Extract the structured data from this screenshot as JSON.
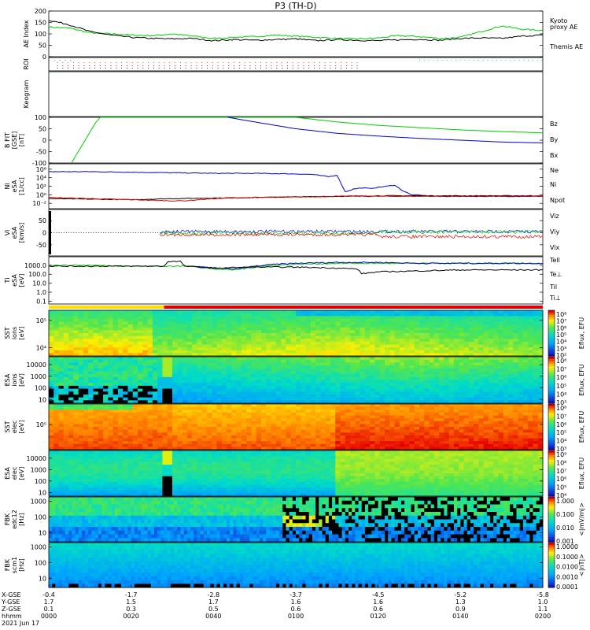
{
  "title": "P3 (TH-D)",
  "colors": {
    "green": "#00cc00",
    "red": "#dd0000",
    "blue": "#0000cc",
    "black": "#000000",
    "cyan": "#00cccc",
    "yellow": "#ffdd00"
  },
  "time_axis": {
    "row_labels": [
      "X-GSE",
      "Y-GSE",
      "Z-GSE",
      "hhmm",
      "2021 Jun 17"
    ],
    "ticks": [
      {
        "x": "-0.4",
        "y": "1.7",
        "z": "0.1",
        "t": "0000"
      },
      {
        "x": "-1.7",
        "y": "1.5",
        "z": "0.3",
        "t": "0020"
      },
      {
        "x": "-2.8",
        "y": "1.7",
        "z": "0.5",
        "t": "0040"
      },
      {
        "x": "-3.7",
        "y": "1.6",
        "z": "0.6",
        "t": "0100"
      },
      {
        "x": "-4.5",
        "y": "1.6",
        "z": "0.6",
        "t": "0120"
      },
      {
        "x": "-5.2",
        "y": "1.3",
        "z": "0.9",
        "t": "0140"
      },
      {
        "x": "-5.8",
        "y": "1.0",
        "z": "1.1",
        "t": "0200"
      }
    ]
  },
  "chart_data": [
    {
      "id": "ae",
      "type": "line",
      "ylabel": [
        "AE Index"
      ],
      "ylim": [
        0,
        200
      ],
      "yticks": [
        "0",
        "50",
        "100",
        "150",
        "200"
      ],
      "legend": [
        {
          "text": "Kyoto",
          "color": "#00cc00"
        },
        {
          "text": "proxy AE",
          "color": "#00cc00"
        },
        {
          "text": "Themis AE",
          "color": "#000000"
        }
      ],
      "series": [
        {
          "name": "Kyoto proxy AE",
          "color": "#00cc00",
          "x": [
            0,
            5,
            10,
            15,
            20,
            25,
            30,
            35,
            40,
            45,
            50,
            55,
            60,
            65,
            70,
            75,
            80,
            85,
            90,
            95,
            100,
            105,
            110,
            115,
            120
          ],
          "y": [
            130,
            125,
            105,
            100,
            95,
            92,
            100,
            90,
            80,
            85,
            88,
            95,
            90,
            85,
            80,
            78,
            82,
            92,
            88,
            80,
            85,
            110,
            135,
            120,
            115
          ]
        },
        {
          "name": "Themis AE",
          "color": "#000000",
          "x": [
            0,
            5,
            10,
            15,
            20,
            25,
            30,
            35,
            40,
            45,
            50,
            55,
            60,
            65,
            70,
            75,
            80,
            85,
            90,
            95,
            100,
            105,
            110,
            115,
            120
          ],
          "y": [
            160,
            140,
            110,
            95,
            85,
            80,
            78,
            80,
            70,
            75,
            72,
            75,
            78,
            70,
            75,
            72,
            70,
            74,
            76,
            72,
            80,
            82,
            80,
            90,
            95
          ]
        }
      ]
    },
    {
      "id": "roi",
      "type": "scatter",
      "ylabel": [
        "ROI"
      ]
    },
    {
      "id": "keogram",
      "type": "heatmap",
      "ylabel": [
        "Keogram"
      ]
    },
    {
      "id": "bfit",
      "type": "line",
      "ylabel": [
        "B FIT",
        "[GSE]",
        "[nT]"
      ],
      "ylim": [
        -100,
        100
      ],
      "yticks": [
        "-100",
        "-50",
        "0",
        "50",
        "100"
      ],
      "legend": [
        {
          "text": "Bz",
          "color": "#dd0000"
        },
        {
          "text": "By",
          "color": "#00cc00"
        },
        {
          "text": "Bx",
          "color": "#0000cc"
        }
      ],
      "series": [
        {
          "name": "By",
          "color": "#00cc00",
          "x": [
            5.5,
            6.5,
            7.5,
            8.5,
            9.5,
            10.5,
            11.5,
            12.5,
            60,
            70,
            80,
            90,
            100,
            110,
            120
          ],
          "y": [
            -100,
            -70,
            -40,
            -10,
            20,
            50,
            80,
            100,
            100,
            80,
            65,
            55,
            45,
            38,
            32
          ]
        },
        {
          "name": "Bx",
          "color": "#0000cc",
          "x": [
            43.5,
            50,
            55,
            60,
            70,
            80,
            90,
            100,
            110,
            120
          ],
          "y": [
            100,
            80,
            65,
            50,
            30,
            18,
            8,
            0,
            -8,
            -12
          ]
        }
      ]
    },
    {
      "id": "ni",
      "type": "line",
      "ylabel": [
        "Ni",
        "eSA",
        "[1/cc]"
      ],
      "yscale": "log",
      "ylim": [
        -2,
        6
      ],
      "yticks": [
        "10⁻²",
        "10⁰",
        "10²",
        "10⁴",
        "10⁶"
      ],
      "legend": [
        {
          "text": "Ne",
          "color": "#dd0000"
        },
        {
          "text": "Ni",
          "color": "#000000"
        },
        {
          "text": "Npot",
          "color": "#0000cc"
        }
      ],
      "series": [
        {
          "name": "Npot",
          "color": "#0000cc",
          "x": [
            0,
            10,
            20,
            30,
            40,
            50,
            60,
            64,
            68,
            70,
            72,
            74,
            76,
            78,
            80,
            84,
            86,
            88,
            90,
            92,
            96,
            100,
            110,
            120
          ],
          "y": [
            4.6,
            4.6,
            4.5,
            4.4,
            4.3,
            4.3,
            4.2,
            4.1,
            3.7,
            4.0,
            1.0,
            1.5,
            1.7,
            1.6,
            1.8,
            2.2,
            1.2,
            0.5,
            0.4,
            0.3,
            0.2,
            0.2,
            0.2,
            0.2
          ]
        },
        {
          "name": "Ni",
          "color": "#000000",
          "x": [
            0,
            10,
            20,
            30,
            40,
            50,
            60,
            70,
            80,
            90,
            100,
            110,
            120
          ],
          "y": [
            -0.2,
            -0.3,
            -0.4,
            -0.2,
            -0.1,
            0.0,
            0.1,
            0.2,
            0.3,
            0.3,
            0.3,
            0.3,
            0.3
          ]
        },
        {
          "name": "Ne",
          "color": "#dd0000",
          "x": [
            0,
            10,
            20,
            30,
            33,
            40,
            50,
            60,
            70,
            80,
            90,
            100,
            110,
            120
          ],
          "y": [
            0.0,
            -0.2,
            -0.4,
            -0.6,
            -0.6,
            -0.2,
            0.0,
            0.1,
            0.2,
            0.2,
            0.2,
            0.2,
            0.2,
            0.2
          ]
        }
      ]
    },
    {
      "id": "vi",
      "type": "line",
      "ylabel": [
        "Vi",
        "eSA",
        "[km/s]"
      ],
      "ylim": [
        -100,
        100
      ],
      "yticks": [
        "-50",
        "0",
        "50"
      ],
      "legend": [
        {
          "text": "Viz",
          "color": "#dd0000"
        },
        {
          "text": "Viy",
          "color": "#00cc00"
        },
        {
          "text": "Vix",
          "color": "#0000cc"
        }
      ],
      "series": []
    },
    {
      "id": "ti",
      "type": "line",
      "ylabel": [
        "Ti",
        "eSA",
        "[eV]"
      ],
      "yscale": "log",
      "ylim": [
        -1,
        4
      ],
      "yticks": [
        "0.1",
        "1.0",
        "10.0",
        "100.0",
        "1000.0"
      ],
      "legend": [
        {
          "text": "Tell",
          "color": "#000000"
        },
        {
          "text": "Te⊥",
          "color": "#dd0000"
        },
        {
          "text": "Til",
          "color": "#00cc00"
        },
        {
          "text": "Ti⊥",
          "color": "#0000cc"
        }
      ],
      "series": [
        {
          "name": "Til",
          "color": "#00cc00",
          "x": [
            0,
            10,
            20,
            30,
            35,
            40,
            45,
            50,
            55,
            60,
            70,
            80,
            90,
            100,
            110,
            120
          ],
          "y": [
            3.1,
            3.1,
            3.0,
            3.0,
            3.0,
            2.7,
            2.6,
            2.9,
            3.1,
            3.2,
            3.3,
            3.3,
            3.3,
            3.3,
            3.3,
            3.3
          ]
        },
        {
          "name": "Ti⊥",
          "color": "#0000cc",
          "x": [
            35,
            40,
            45,
            50,
            55,
            60,
            70,
            80,
            90,
            100,
            110,
            120
          ],
          "y": [
            3.0,
            2.8,
            2.7,
            3.0,
            3.2,
            3.3,
            3.4,
            3.4,
            3.3,
            3.3,
            3.3,
            3.3
          ]
        },
        {
          "name": "Tell",
          "color": "#000000",
          "x": [
            0,
            10,
            20,
            28,
            29,
            32,
            33,
            40,
            50,
            60,
            70,
            75,
            76,
            80,
            90,
            100,
            110,
            120
          ],
          "y": [
            3.0,
            3.0,
            3.0,
            3.0,
            3.5,
            3.5,
            3.0,
            2.8,
            2.9,
            2.9,
            2.8,
            2.7,
            2.2,
            2.4,
            2.5,
            2.6,
            2.6,
            2.6
          ]
        }
      ]
    },
    {
      "id": "sst_i",
      "type": "heatmap",
      "ylabel": [
        "SST",
        "ions",
        "[eV]"
      ],
      "yticks": [
        "10⁴",
        "10⁵"
      ],
      "cbar_label": "Eflux, EFU",
      "cbar_ticks": [
        "10⁸",
        "10⁷",
        "10⁶",
        "10⁵",
        "10⁴",
        "10³",
        "10²"
      ]
    },
    {
      "id": "esa_i",
      "type": "heatmap",
      "ylabel": [
        "ESA",
        "ions",
        "[eV]"
      ],
      "yticks": [
        "10",
        "100",
        "1000",
        "10000"
      ],
      "cbar_label": "Eflux, EFU",
      "cbar_ticks": [
        "10⁸",
        "10⁷",
        "10⁶",
        "10⁵",
        "10⁴",
        "10³"
      ]
    },
    {
      "id": "sst_e",
      "type": "heatmap",
      "ylabel": [
        "SST",
        "elec",
        "[eV]"
      ],
      "yticks": [
        "10⁵"
      ],
      "cbar_label": "Eflux, EFU",
      "cbar_ticks": [
        "10⁸",
        "10⁷",
        "10⁶",
        "10⁵",
        "10⁴",
        "10³"
      ]
    },
    {
      "id": "esa_e",
      "type": "heatmap",
      "ylabel": [
        "ESA",
        "elec",
        "[eV]"
      ],
      "yticks": [
        "10",
        "100",
        "1000",
        "10000"
      ],
      "cbar_label": "Eflux, EFU",
      "cbar_ticks": [
        "10⁹",
        "10⁸",
        "10⁷",
        "10⁶",
        "10⁵",
        "10⁴"
      ]
    },
    {
      "id": "fbk_e",
      "type": "heatmap",
      "ylabel": [
        "FBK",
        "edc12",
        "[Hz]"
      ],
      "yticks": [
        "10",
        "100",
        "1000"
      ],
      "cbar_label": "<|mV/m|>",
      "cbar_ticks": [
        "1.000",
        "0.100",
        "0.010",
        "0.001"
      ]
    },
    {
      "id": "fbk_b",
      "type": "heatmap",
      "ylabel": [
        "FBK",
        "scm1",
        "[Hz]"
      ],
      "yticks": [
        "10",
        "100",
        "1000"
      ],
      "cbar_label": "<|nT|>",
      "cbar_ticks": [
        "1.0000",
        "0.1000",
        "0.0100",
        "0.0010",
        "0.0001"
      ]
    }
  ]
}
